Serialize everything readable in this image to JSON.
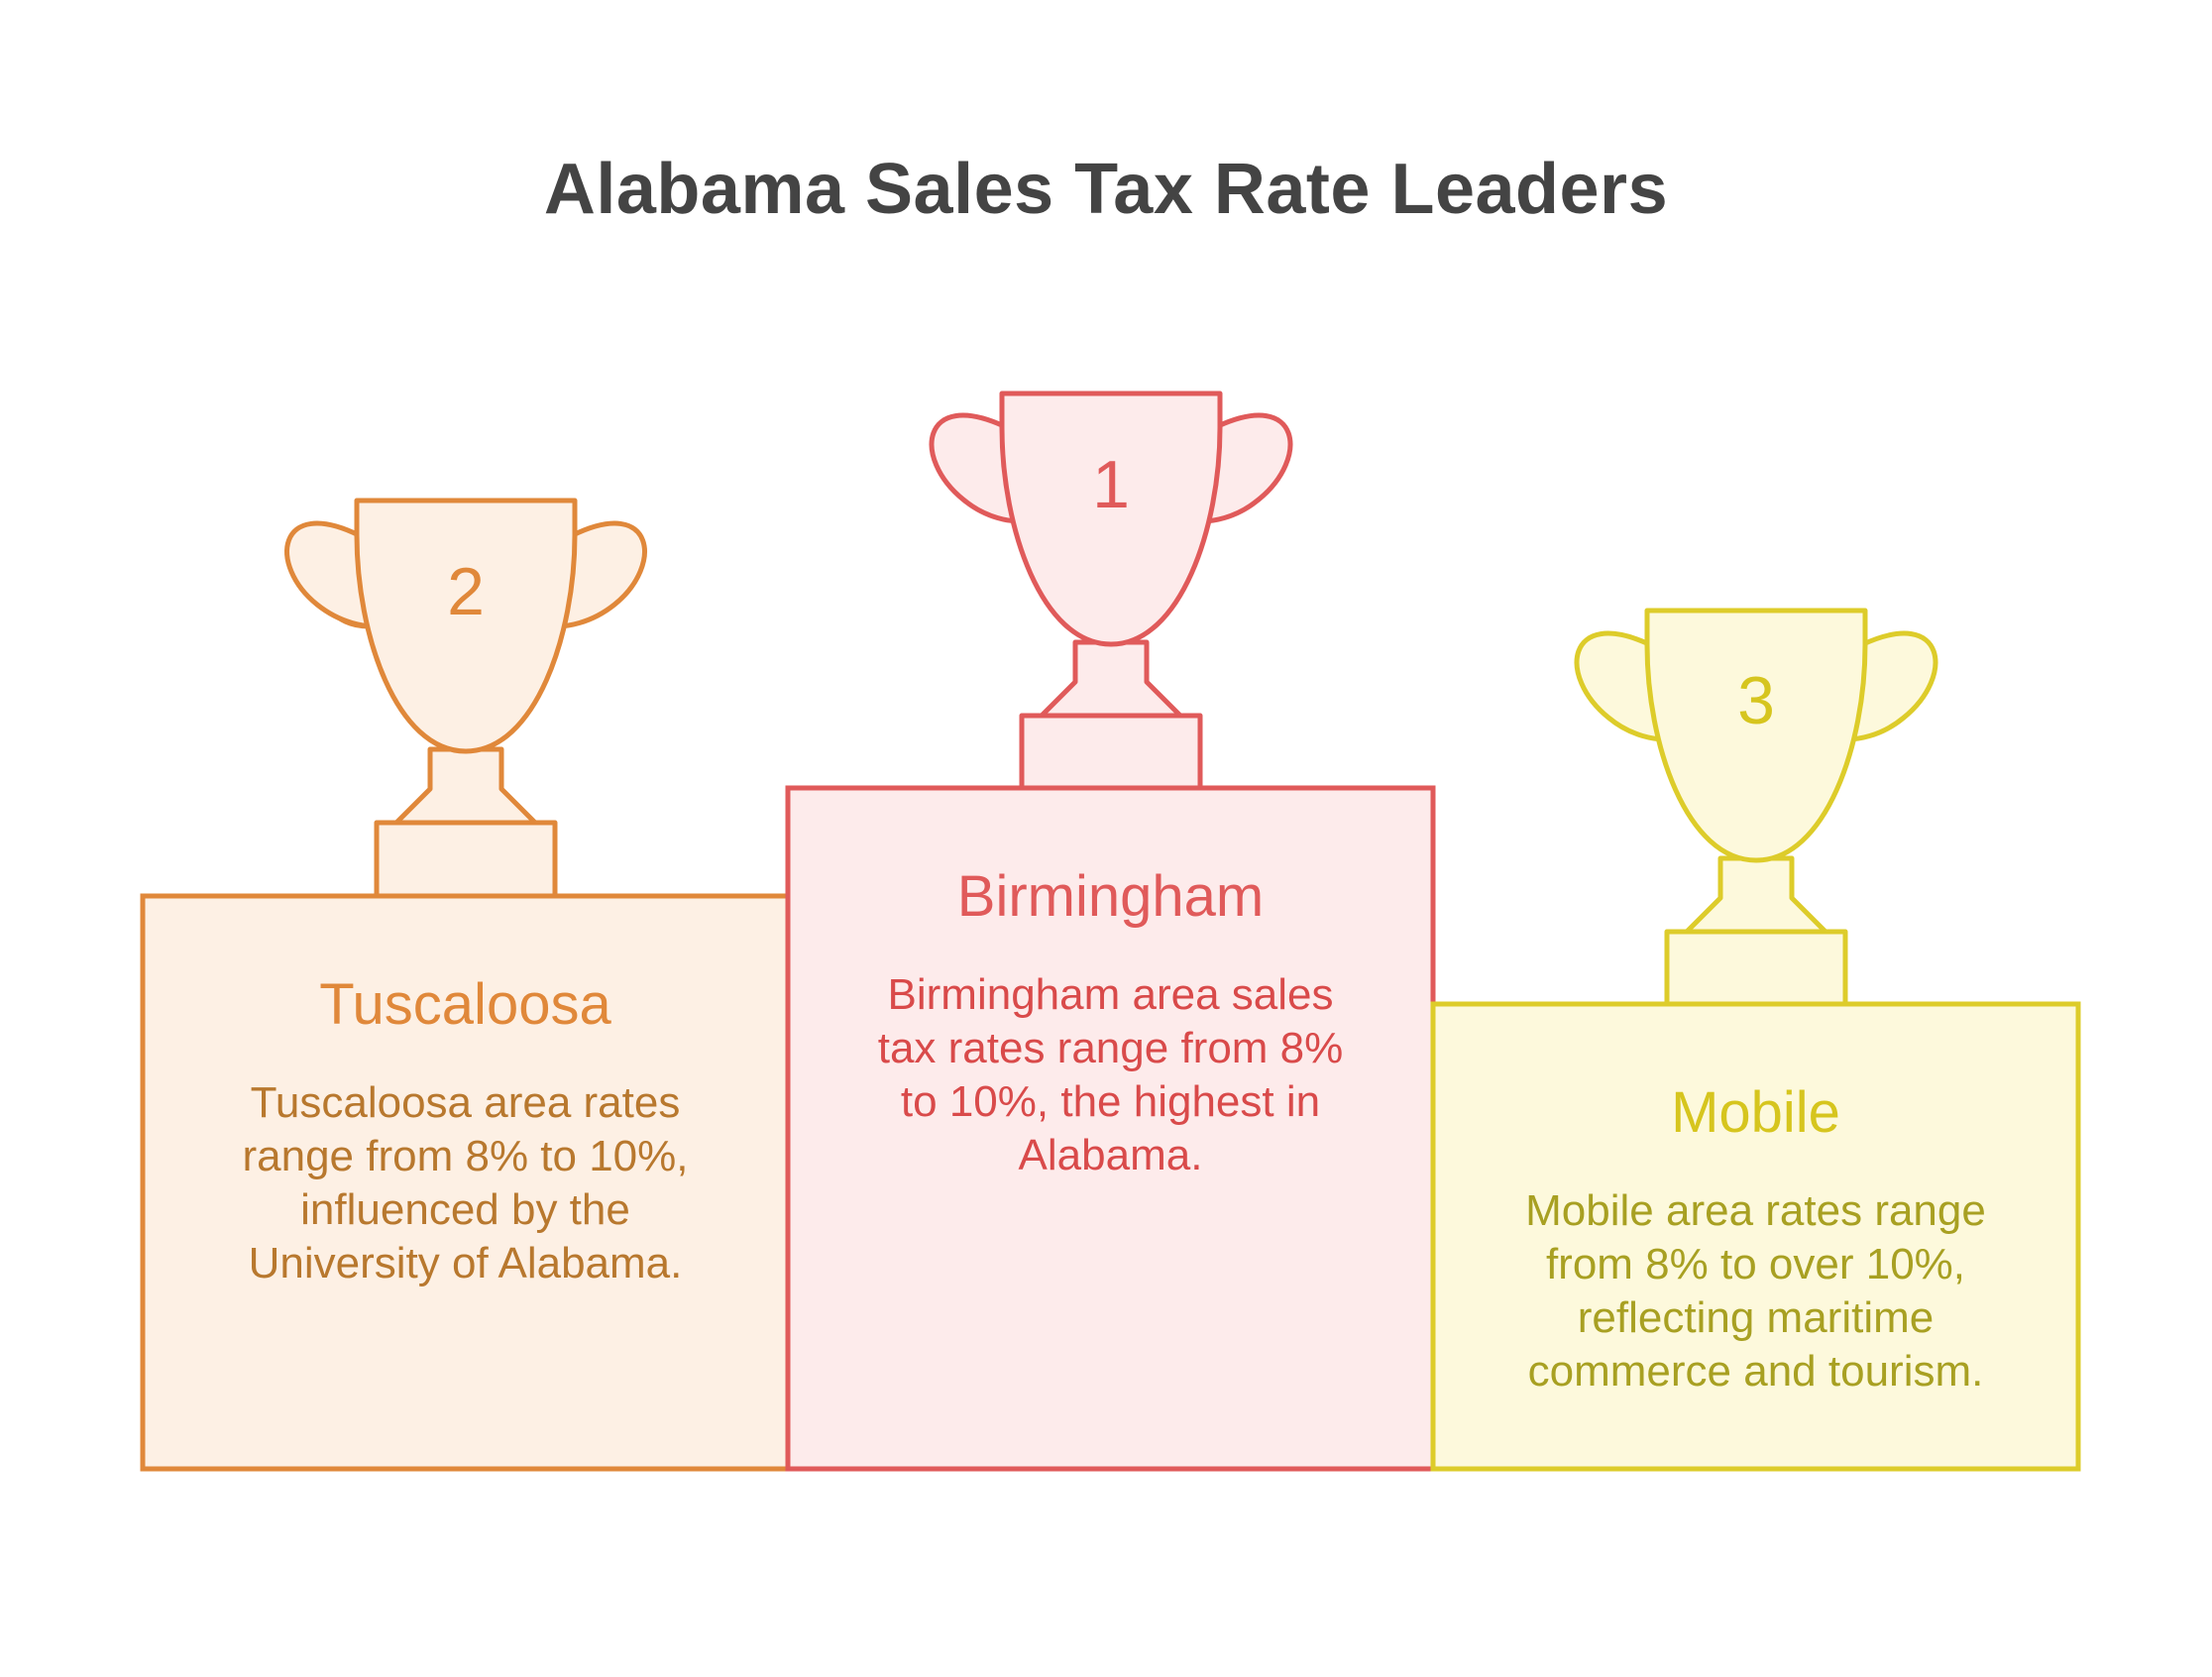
{
  "title": "Alabama Sales Tax Rate Leaders",
  "podium": [
    {
      "key": "tuscaloosa",
      "rank": "2",
      "name": "Tuscaloosa",
      "description": "Tuscaloosa area rates range from 8% to 10%, influenced by the University of Alabama.",
      "desc_lines": [
        "Tuscaloosa area rates",
        "range from 8% to 10%,",
        "influenced by the",
        "University of Alabama."
      ],
      "colors": {
        "stroke": "#E0883A",
        "fill": "#FDF0E4",
        "text": "#B8782E",
        "name": "#E0883A"
      }
    },
    {
      "key": "birmingham",
      "rank": "1",
      "name": "Birmingham",
      "description": "Birmingham area sales tax rates range from 8% to 10%, the highest in Alabama.",
      "desc_lines": [
        "Birmingham area sales",
        "tax rates range from 8%",
        "to 10%, the highest in",
        "Alabama."
      ],
      "colors": {
        "stroke": "#E05A5A",
        "fill": "#FDEBEB",
        "text": "#D94A4A",
        "name": "#E05A5A"
      }
    },
    {
      "key": "mobile",
      "rank": "3",
      "name": "Mobile",
      "description": "Mobile area rates range from 8% to over 10%, reflecting maritime commerce and tourism.",
      "desc_lines": [
        "Mobile area rates range",
        "from 8% to over 10%,",
        "reflecting maritime",
        "commerce and tourism."
      ],
      "colors": {
        "stroke": "#DDCC2A",
        "fill": "#FDF9DC",
        "text": "#A8A022",
        "name": "#D6C51E"
      }
    }
  ]
}
